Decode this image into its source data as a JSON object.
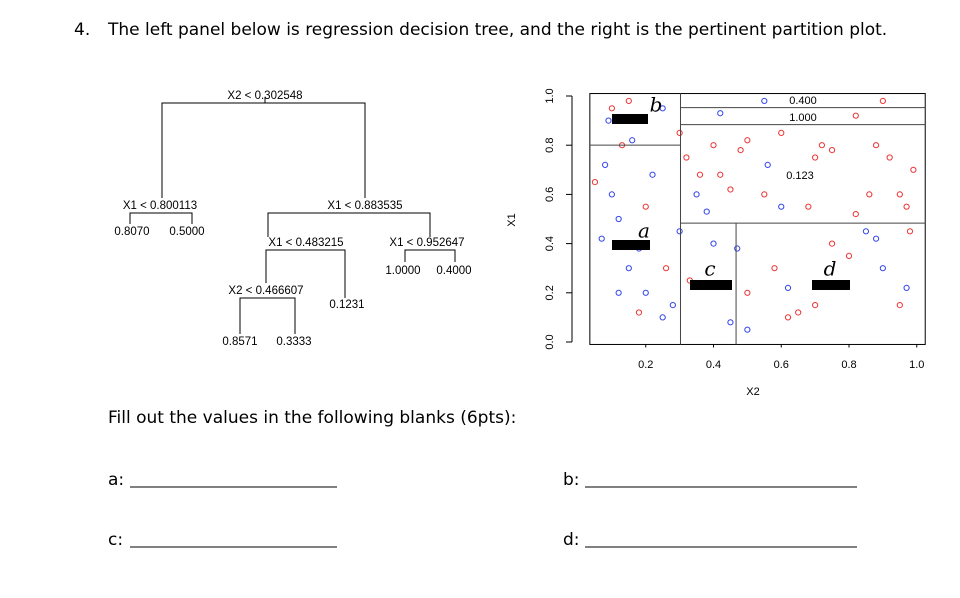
{
  "question": {
    "number": "4.",
    "text": "The left panel below is regression decision tree, and the right is the pertinent partition plot."
  },
  "tree": {
    "nodes": [
      "X2 < 0.302548",
      "X1 < 0.800113",
      "X1 < 0.883535",
      "X1 < 0.483215",
      "X1 < 0.952647",
      "X2 < 0.466607"
    ],
    "leaves": [
      "0.8070",
      "0.5000",
      "1.0000",
      "0.4000",
      "0.1231",
      "0.8571",
      "0.3333"
    ]
  },
  "plot": {
    "xlabel": "X2",
    "ylabel": "X1",
    "xlim": [
      0.035,
      1.025
    ],
    "ylim": [
      -0.01,
      1.01
    ],
    "xticks": [
      0.2,
      0.4,
      0.6,
      0.8,
      {
        "value": 1,
        "label": "1.0"
      }
    ],
    "yticks": [
      {
        "value": 0,
        "label": "0.0"
      },
      0.2,
      0.4,
      0.6,
      0.8,
      {
        "value": 1,
        "label": "1.0"
      }
    ],
    "partitions": [
      {
        "axis": "x",
        "value": 0.302548,
        "span": [
          -0.01,
          1.01
        ]
      },
      {
        "axis": "y",
        "value": 0.800113,
        "span": [
          0.035,
          0.302548
        ]
      },
      {
        "axis": "y",
        "value": 0.883535,
        "span": [
          0.302548,
          1.025
        ]
      },
      {
        "axis": "y",
        "value": 0.952647,
        "span": [
          0.302548,
          1.025
        ]
      },
      {
        "axis": "y",
        "value": 0.483215,
        "span": [
          0.302548,
          1.025
        ]
      },
      {
        "axis": "x",
        "value": 0.466607,
        "span": [
          -0.01,
          0.483215
        ]
      }
    ],
    "region_labels": [
      "0.400",
      "1.000",
      "0.123"
    ],
    "annotations": [
      "b",
      "a",
      "c",
      "d"
    ],
    "series": [
      {
        "color": "#3344ee",
        "x": [
          0.08,
          0.1,
          0.12,
          0.07,
          0.15,
          0.2,
          0.25,
          0.18,
          0.22,
          0.28,
          0.12,
          0.09,
          0.25,
          0.42,
          0.45,
          0.5,
          0.4,
          0.47,
          0.55,
          0.9,
          0.88,
          0.97,
          0.35,
          0.38,
          0.62,
          0.6,
          0.56,
          0.85,
          0.3,
          0.16
        ],
        "y": [
          0.72,
          0.6,
          0.5,
          0.42,
          0.3,
          0.2,
          0.1,
          0.38,
          0.68,
          0.15,
          0.2,
          0.9,
          0.95,
          0.93,
          0.08,
          0.05,
          0.4,
          0.38,
          0.98,
          0.3,
          0.42,
          0.22,
          0.6,
          0.53,
          0.22,
          0.55,
          0.72,
          0.45,
          0.45,
          0.82
        ]
      },
      {
        "color": "#ee3333",
        "x": [
          0.1,
          0.15,
          0.3,
          0.32,
          0.36,
          0.4,
          0.48,
          0.5,
          0.45,
          0.55,
          0.58,
          0.62,
          0.68,
          0.7,
          0.72,
          0.75,
          0.8,
          0.82,
          0.88,
          0.92,
          0.95,
          0.97,
          0.99,
          0.9,
          0.82,
          0.7,
          0.13,
          0.05,
          0.2,
          0.26,
          0.18,
          0.33,
          0.75,
          0.65,
          0.95,
          0.5,
          0.42,
          0.6,
          0.98,
          0.86
        ],
        "y": [
          0.95,
          0.98,
          0.85,
          0.75,
          0.68,
          0.8,
          0.78,
          0.82,
          0.62,
          0.6,
          0.3,
          0.1,
          0.55,
          0.75,
          0.8,
          0.78,
          0.35,
          0.52,
          0.8,
          0.75,
          0.6,
          0.55,
          0.7,
          0.98,
          0.92,
          0.15,
          0.8,
          0.65,
          0.55,
          0.3,
          0.12,
          0.25,
          0.4,
          0.12,
          0.15,
          0.2,
          0.68,
          0.85,
          0.45,
          0.6
        ]
      }
    ]
  },
  "instructions": "Fill out the values in the following blanks (6pts):",
  "blanks": [
    "a:",
    "b:",
    "c:",
    "d:"
  ]
}
